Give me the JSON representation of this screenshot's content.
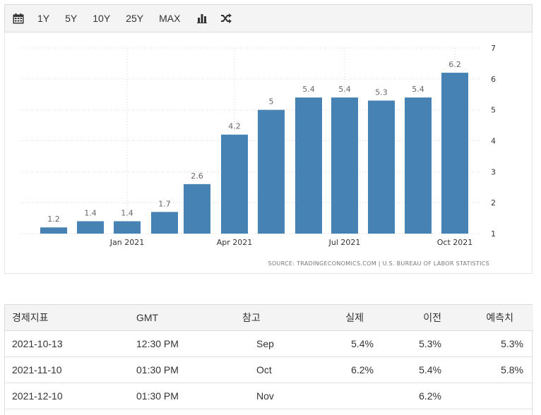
{
  "toolbar": {
    "calendar_icon": "calendar-icon",
    "ranges": [
      "1Y",
      "5Y",
      "10Y",
      "25Y",
      "MAX"
    ],
    "bar_icon": "bar-chart-icon",
    "compare_icon": "shuffle-icon"
  },
  "chart_data": {
    "type": "bar",
    "values": [
      1.2,
      1.4,
      1.4,
      1.7,
      2.6,
      4.2,
      5.0,
      5.4,
      5.4,
      5.3,
      5.4,
      6.2
    ],
    "data_labels": [
      "1.2",
      "1.4",
      "1.4",
      "1.7",
      "2.6",
      "4.2",
      "5",
      "5.4",
      "5.4",
      "5.3",
      "5.4",
      "6.2"
    ],
    "x_tick_labels": [
      {
        "label": "Jan 2021",
        "index": 2
      },
      {
        "label": "Apr 2021",
        "index": 5
      },
      {
        "label": "Jul 2021",
        "index": 8
      },
      {
        "label": "Oct 2021",
        "index": 11
      }
    ],
    "ylim": [
      1,
      7
    ],
    "y_ticks": [
      1,
      2,
      3,
      4,
      5,
      6,
      7
    ],
    "y_axis_side": "right",
    "grid": "dotted",
    "bar_color": "#4682b4",
    "source": "SOURCE: TRADINGECONOMICS.COM  |  U.S. BUREAU OF LABOR STATISTICS"
  },
  "table": {
    "headers": [
      "경제지표",
      "GMT",
      "참고",
      "실제",
      "이전",
      "예측치"
    ],
    "rows": [
      {
        "date": "2021-10-13",
        "gmt": "12:30 PM",
        "ref": "Sep",
        "actual": "5.4%",
        "previous": "5.3%",
        "forecast": "5.3%"
      },
      {
        "date": "2021-11-10",
        "gmt": "01:30 PM",
        "ref": "Oct",
        "actual": "6.2%",
        "previous": "5.4%",
        "forecast": "5.8%"
      },
      {
        "date": "2021-12-10",
        "gmt": "01:30 PM",
        "ref": "Nov",
        "actual": "",
        "previous": "6.2%",
        "forecast": ""
      }
    ]
  }
}
